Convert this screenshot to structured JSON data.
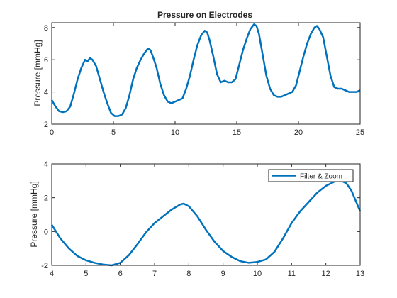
{
  "chart_data": [
    {
      "type": "line",
      "title": "Pressure on Electrodes",
      "xlabel": "",
      "ylabel": "Pressure [mmHg]",
      "xlim": [
        0,
        25
      ],
      "ylim": [
        2,
        8.3
      ],
      "xticks": [
        0,
        5,
        10,
        15,
        20,
        25
      ],
      "yticks": [
        2,
        4,
        6,
        8
      ],
      "grid": false,
      "series": [
        {
          "color": "#0072BD",
          "x": [
            0,
            0.3,
            0.6,
            0.9,
            1.2,
            1.5,
            1.8,
            2.1,
            2.4,
            2.7,
            2.9,
            3.1,
            3.3,
            3.6,
            3.9,
            4.2,
            4.5,
            4.8,
            5.1,
            5.4,
            5.7,
            6.0,
            6.3,
            6.6,
            6.9,
            7.2,
            7.5,
            7.8,
            8.0,
            8.2,
            8.5,
            8.8,
            9.1,
            9.4,
            9.7,
            10.0,
            10.3,
            10.6,
            10.9,
            11.2,
            11.5,
            11.8,
            12.1,
            12.4,
            12.6,
            12.8,
            13.1,
            13.4,
            13.7,
            14.0,
            14.3,
            14.6,
            14.9,
            15.2,
            15.5,
            15.8,
            16.1,
            16.4,
            16.6,
            16.8,
            17.1,
            17.4,
            17.7,
            18.0,
            18.3,
            18.6,
            18.9,
            19.2,
            19.5,
            19.8,
            20.1,
            20.4,
            20.7,
            21.0,
            21.3,
            21.5,
            21.7,
            22.0,
            22.3,
            22.6,
            22.9,
            23.2,
            23.5,
            23.8,
            24.1,
            24.4,
            24.7,
            25.0
          ],
          "y": [
            3.5,
            3.1,
            2.8,
            2.75,
            2.8,
            3.1,
            3.9,
            4.8,
            5.5,
            6.0,
            5.9,
            6.1,
            6.0,
            5.6,
            4.8,
            4.0,
            3.3,
            2.7,
            2.5,
            2.5,
            2.6,
            3.0,
            3.8,
            4.8,
            5.5,
            6.0,
            6.4,
            6.7,
            6.6,
            6.2,
            5.5,
            4.5,
            3.8,
            3.4,
            3.3,
            3.4,
            3.5,
            3.6,
            4.2,
            5.0,
            6.0,
            6.9,
            7.5,
            7.8,
            7.7,
            7.2,
            6.2,
            5.1,
            4.6,
            4.7,
            4.6,
            4.6,
            4.8,
            5.7,
            6.6,
            7.3,
            7.9,
            8.2,
            8.1,
            7.6,
            6.3,
            5.0,
            4.2,
            3.8,
            3.7,
            3.7,
            3.8,
            3.9,
            4.0,
            4.4,
            5.3,
            6.2,
            7.0,
            7.6,
            8.0,
            8.1,
            7.9,
            7.4,
            6.2,
            5.0,
            4.3,
            4.2,
            4.2,
            4.1,
            4.0,
            4.0,
            4.0,
            4.1
          ]
        }
      ]
    },
    {
      "type": "line",
      "title": "",
      "xlabel": "",
      "ylabel": "Pressure [mmHg]",
      "xlim": [
        4,
        13
      ],
      "ylim": [
        -2,
        4
      ],
      "xticks": [
        4,
        5,
        6,
        7,
        8,
        9,
        10,
        11,
        12,
        13
      ],
      "yticks": [
        -2,
        0,
        2,
        4
      ],
      "grid": false,
      "legend_position": "top-right",
      "series": [
        {
          "name": "Filter & Zoom",
          "color": "#0072BD",
          "x": [
            4,
            4.25,
            4.5,
            4.75,
            5,
            5.25,
            5.5,
            5.75,
            6,
            6.25,
            6.5,
            6.75,
            7,
            7.25,
            7.5,
            7.75,
            7.85,
            8,
            8.25,
            8.5,
            8.75,
            9,
            9.25,
            9.5,
            9.75,
            10,
            10.25,
            10.5,
            10.75,
            11,
            11.25,
            11.5,
            11.75,
            12,
            12.25,
            12.45,
            12.6,
            12.75,
            13
          ],
          "y": [
            0.4,
            -0.4,
            -1.0,
            -1.45,
            -1.7,
            -1.85,
            -1.95,
            -2.0,
            -1.85,
            -1.4,
            -0.75,
            -0.05,
            0.5,
            0.9,
            1.3,
            1.6,
            1.65,
            1.5,
            0.9,
            0.1,
            -0.6,
            -1.15,
            -1.5,
            -1.75,
            -1.85,
            -1.8,
            -1.65,
            -1.2,
            -0.4,
            0.5,
            1.2,
            1.75,
            2.3,
            2.7,
            2.95,
            3.0,
            2.85,
            2.4,
            1.2
          ]
        }
      ]
    }
  ]
}
